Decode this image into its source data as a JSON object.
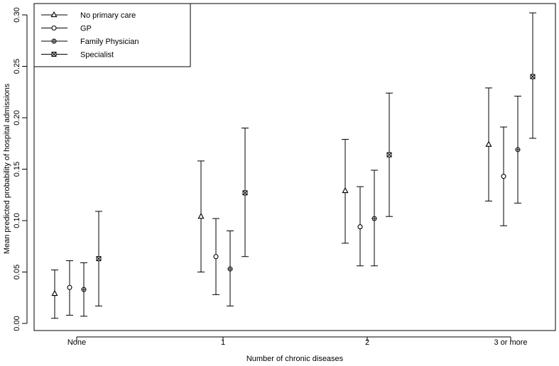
{
  "chart_data": {
    "type": "scatter",
    "xlabel": "Number of chronic diseases",
    "ylabel": "Mean predicted probability of hospital admissions",
    "categories": [
      "None",
      "1",
      "2",
      "3 or more"
    ],
    "ylim": [
      0.0,
      0.3
    ],
    "yticks": [
      0.0,
      0.05,
      0.1,
      0.15,
      0.2,
      0.25,
      0.3
    ],
    "ytick_labels": [
      "0.00",
      "0.05",
      "0.10",
      "0.15",
      "0.20",
      "0.25",
      "0.30"
    ],
    "legend_position": "top-left",
    "grid": false,
    "series": [
      {
        "name": "No primary care",
        "marker": "triangle",
        "values": [
          0.029,
          0.104,
          0.129,
          0.174
        ],
        "lower": [
          0.005,
          0.05,
          0.078,
          0.119
        ],
        "upper": [
          0.052,
          0.158,
          0.179,
          0.229
        ]
      },
      {
        "name": "GP",
        "marker": "circle",
        "values": [
          0.035,
          0.065,
          0.094,
          0.143
        ],
        "lower": [
          0.008,
          0.028,
          0.056,
          0.095
        ],
        "upper": [
          0.061,
          0.102,
          0.133,
          0.191
        ]
      },
      {
        "name": "Family  Physician",
        "marker": "plus",
        "values": [
          0.033,
          0.053,
          0.102,
          0.169
        ],
        "lower": [
          0.007,
          0.017,
          0.056,
          0.117
        ],
        "upper": [
          0.059,
          0.09,
          0.149,
          0.221
        ]
      },
      {
        "name": "Specialist",
        "marker": "cross",
        "values": [
          0.063,
          0.127,
          0.164,
          0.24
        ],
        "lower": [
          0.017,
          0.065,
          0.104,
          0.18
        ],
        "upper": [
          0.109,
          0.19,
          0.224,
          0.302
        ]
      }
    ]
  }
}
